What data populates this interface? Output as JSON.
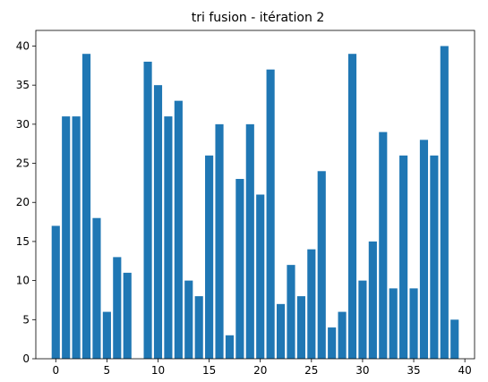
{
  "chart_data": {
    "type": "bar",
    "title": "tri fusion - itération 2",
    "xlabel": "",
    "ylabel": "",
    "x": [
      0,
      1,
      2,
      3,
      4,
      5,
      6,
      7,
      8,
      9,
      10,
      11,
      12,
      13,
      14,
      15,
      16,
      17,
      18,
      19,
      20,
      21,
      22,
      23,
      24,
      25,
      26,
      27,
      28,
      29,
      30,
      31,
      32,
      33,
      34,
      35,
      36,
      37,
      38,
      39
    ],
    "values": [
      17,
      31,
      31,
      39,
      18,
      6,
      13,
      11,
      0,
      38,
      35,
      31,
      33,
      10,
      8,
      26,
      30,
      3,
      23,
      30,
      21,
      37,
      7,
      12,
      8,
      14,
      24,
      4,
      6,
      39,
      10,
      15,
      29,
      9,
      26,
      9,
      28,
      26,
      40,
      5
    ],
    "xlim": [
      -1.95,
      40.95
    ],
    "ylim": [
      0,
      42
    ],
    "xticks": [
      0,
      5,
      10,
      15,
      20,
      25,
      30,
      35,
      40
    ],
    "yticks": [
      0,
      5,
      10,
      15,
      20,
      25,
      30,
      35,
      40
    ],
    "bar_color": "#1f77b4",
    "grid": false,
    "legend": "none"
  }
}
